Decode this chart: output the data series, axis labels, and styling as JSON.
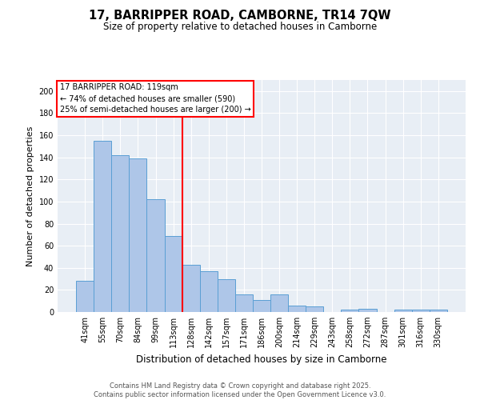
{
  "title": "17, BARRIPPER ROAD, CAMBORNE, TR14 7QW",
  "subtitle": "Size of property relative to detached houses in Camborne",
  "xlabel": "Distribution of detached houses by size in Camborne",
  "ylabel": "Number of detached properties",
  "categories": [
    "41sqm",
    "55sqm",
    "70sqm",
    "84sqm",
    "99sqm",
    "113sqm",
    "128sqm",
    "142sqm",
    "157sqm",
    "171sqm",
    "186sqm",
    "200sqm",
    "214sqm",
    "229sqm",
    "243sqm",
    "258sqm",
    "272sqm",
    "287sqm",
    "301sqm",
    "316sqm",
    "330sqm"
  ],
  "values": [
    28,
    155,
    142,
    139,
    102,
    69,
    43,
    37,
    30,
    16,
    11,
    16,
    6,
    5,
    0,
    2,
    3,
    0,
    2,
    2,
    2
  ],
  "bar_color": "#aec6e8",
  "bar_edge_color": "#5a9fd4",
  "vline_x": 5.5,
  "vline_color": "red",
  "annotation_title": "17 BARRIPPER ROAD: 119sqm",
  "annotation_line1": "← 74% of detached houses are smaller (590)",
  "annotation_line2": "25% of semi-detached houses are larger (200) →",
  "annotation_box_color": "red",
  "ylim": [
    0,
    210
  ],
  "yticks": [
    0,
    20,
    40,
    60,
    80,
    100,
    120,
    140,
    160,
    180,
    200
  ],
  "footnote1": "Contains HM Land Registry data © Crown copyright and database right 2025.",
  "footnote2": "Contains public sector information licensed under the Open Government Licence v3.0.",
  "background_color": "#e8eef5",
  "fig_background": "#ffffff"
}
